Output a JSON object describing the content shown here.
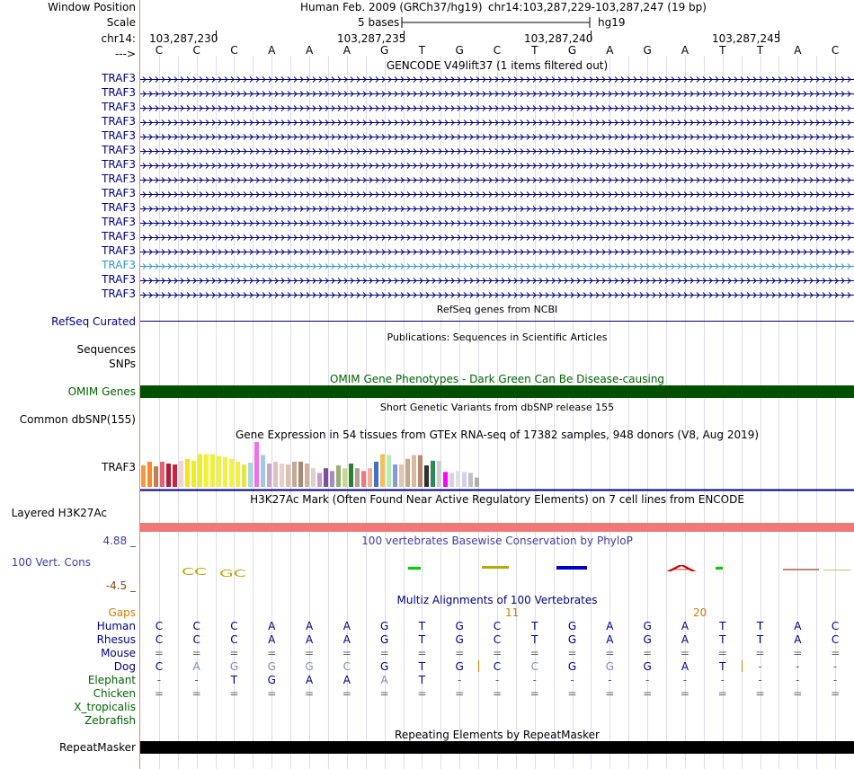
{
  "left_labels": {
    "window_position": "Window Position",
    "scale": "Scale",
    "chrom": "chr14:",
    "arrow": "--->",
    "refseq": "RefSeq Curated",
    "sequences": "Sequences",
    "snps": "SNPs",
    "omim": "OMIM Genes",
    "dbsnp": "Common dbSNP(155)",
    "traf3_expr": "TRAF3",
    "h3k27ac": "Layered H3K27Ac",
    "phylop_max": "4.88 _",
    "cons": "100 Vert. Cons",
    "phylop_min": "-4.5 _",
    "repeatmasker": "RepeatMasker"
  },
  "gene_labels": [
    "TRAF3",
    "TRAF3",
    "TRAF3",
    "TRAF3",
    "TRAF3",
    "TRAF3",
    "TRAF3",
    "TRAF3",
    "TRAF3",
    "TRAF3",
    "TRAF3",
    "TRAF3",
    "TRAF3",
    "TRAF3",
    "TRAF3",
    "TRAF3"
  ],
  "header": {
    "assembly": "Human Feb. 2009 (GRCh37/hg19)",
    "position": "chr14:103,287,229-103,287,247 (19 bp)",
    "scale_text": "5 bases",
    "scale_db": "hg19",
    "ticks": [
      "103,287,230",
      "103,287,235",
      "103,287,240",
      "103,287,245"
    ]
  },
  "sequence": [
    "C",
    "C",
    "C",
    "A",
    "A",
    "A",
    "G",
    "T",
    "G",
    "C",
    "T",
    "G",
    "A",
    "G",
    "A",
    "T",
    "T",
    "A",
    "C"
  ],
  "tracks": {
    "gencode_title": "GENCODE V49lift37 (1 items filtered out)",
    "refseq_title": "RefSeq genes from NCBI",
    "pubs_title": "Publications: Sequences in Scientific Articles",
    "omim_title": "OMIM Gene Phenotypes - Dark Green Can Be Disease-causing",
    "dbsnp_title": "Short Genetic Variants from dbSNP release 155",
    "gtex_title": "Gene Expression in 54 tissues from GTEx RNA-seq of 17382 samples, 948 donors (V8, Aug 2019)",
    "h3k27ac_title": "H3K27Ac Mark (Often Found Near Active Regulatory Elements) on 7 cell lines from ENCODE",
    "phylop_title": "100 vertebrates Basewise Conservation by PhyloP",
    "multiz_title": "Multiz Alignments of 100 Vertebrates",
    "repeat_title": "Repeating Elements by RepeatMasker"
  },
  "multiz": {
    "gaps_label": "Gaps",
    "gap_markers": [
      "11",
      "20"
    ],
    "species": [
      {
        "name": "Human",
        "color": "#000080",
        "seq": [
          "C",
          "C",
          "C",
          "A",
          "A",
          "A",
          "G",
          "T",
          "G",
          "C",
          "T",
          "G",
          "A",
          "G",
          "A",
          "T",
          "T",
          "A",
          "C"
        ]
      },
      {
        "name": "Rhesus",
        "color": "#000080",
        "seq": [
          "C",
          "C",
          "C",
          "A",
          "A",
          "A",
          "G",
          "T",
          "G",
          "C",
          "T",
          "G",
          "A",
          "G",
          "A",
          "T",
          "T",
          "A",
          "C"
        ]
      },
      {
        "name": "Mouse",
        "color": "#000080",
        "seq": [
          "=",
          "=",
          "=",
          "=",
          "=",
          "=",
          "=",
          "=",
          "=",
          "=",
          "=",
          "=",
          "=",
          "=",
          "=",
          "=",
          "=",
          "=",
          "="
        ]
      },
      {
        "name": "Dog",
        "color": "#000080",
        "seq": [
          "C",
          "A",
          "G",
          "G",
          "G",
          "C",
          "G",
          "T",
          "G",
          "C",
          "C",
          "G",
          "G",
          "G",
          "A",
          "T",
          "-",
          "-",
          "-"
        ]
      },
      {
        "name": "Elephant",
        "color": "#006400",
        "seq": [
          "-",
          "-",
          "T",
          "G",
          "A",
          "A",
          "A",
          "T",
          "-",
          "-",
          "-",
          "-",
          "-",
          "-",
          "-",
          "-",
          "-",
          "-",
          "-"
        ]
      },
      {
        "name": "Chicken",
        "color": "#006400",
        "seq": [
          "=",
          "=",
          "=",
          "=",
          "=",
          "=",
          "=",
          "=",
          "=",
          "=",
          "=",
          "=",
          "=",
          "=",
          "=",
          "=",
          "=",
          "=",
          "="
        ]
      },
      {
        "name": "X_tropicalis",
        "color": "#006400",
        "seq": []
      },
      {
        "name": "Zebrafish",
        "color": "#006400",
        "seq": []
      }
    ]
  },
  "gtex": {
    "gene": "TRAF3",
    "values": [
      23,
      27,
      22,
      27,
      25,
      24,
      28,
      30,
      28,
      35,
      35,
      35,
      33,
      32,
      30,
      27,
      24,
      26,
      48,
      34,
      25,
      27,
      25,
      24,
      27,
      27,
      25,
      20,
      15,
      20,
      17,
      23,
      20,
      25,
      20,
      17,
      20,
      27,
      35,
      34,
      24,
      24,
      30,
      34,
      34,
      23,
      28,
      28,
      16,
      15,
      17,
      16,
      15,
      10
    ],
    "colors": [
      "#f39a3c",
      "#f58a27",
      "#c47c52",
      "#e06270",
      "#b31a35",
      "#c8243e",
      "#f2d2c9",
      "#f5e31f",
      "#efef20",
      "#ecec30",
      "#f0f03a",
      "#eef03e",
      "#f2f142",
      "#f1f13f",
      "#f4f537",
      "#f0f138",
      "#e5e83c",
      "#a8d8d8",
      "#f070ec",
      "#a0c8e8",
      "#c8a8c8",
      "#e0c0c0",
      "#e8d0c8",
      "#dcc0b0",
      "#c8a890",
      "#a88870",
      "#d0b0a0",
      "#e0d0c8",
      "#cc99cc",
      "#7b4f9e",
      "#a888c8",
      "#98b078",
      "#c8d890",
      "#2e7d32",
      "#b4a090",
      "#f07878",
      "#f0b090",
      "#4472c4",
      "#f0c060",
      "#b4ecb4",
      "#8898d8",
      "#e0c8b0",
      "#c8a888",
      "#d8b8a0",
      "#b88870",
      "#303030",
      "#2e8b57",
      "#d0d0d0",
      "#ff00ff",
      "#e8c8e8",
      "#e0e0e0",
      "#d0d0f0",
      "#c0c0c0",
      "#b0b0b0"
    ]
  },
  "colors": {
    "gene_dark": "#000080",
    "gene_light": "#3399cc",
    "omim_bar": "#005000",
    "h3k27ac_bar": "#f07878",
    "repeat_bar": "#000000",
    "gaps": "#d08000",
    "phylop_title": "#4040a0"
  }
}
